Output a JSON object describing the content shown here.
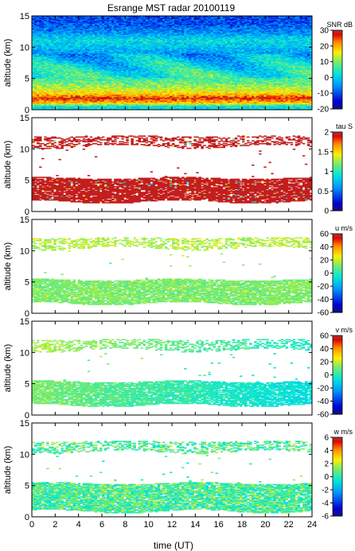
{
  "title": "Esrange MST radar 20100119",
  "xlabel": "time (UT)",
  "chart_data": [
    {
      "type": "heatmap",
      "quantity": "SNR",
      "colorbar_label": "SNR dB",
      "clim": [
        -20,
        30
      ],
      "colorbar_ticks": [
        -20,
        -10,
        0,
        10,
        20,
        30
      ],
      "xlim": [
        0,
        24
      ],
      "xticks": [
        0,
        2,
        4,
        6,
        8,
        10,
        12,
        14,
        16,
        18,
        20,
        22,
        24
      ],
      "ylabel": "altitude (km)",
      "ylim": [
        0,
        15
      ],
      "yticks": [
        0,
        5,
        10,
        15
      ],
      "profile": [
        [
          0.5,
          2
        ],
        [
          1.0,
          18
        ],
        [
          1.8,
          27
        ],
        [
          2.5,
          18
        ],
        [
          3.5,
          12
        ],
        [
          4.5,
          8
        ],
        [
          5.5,
          4
        ],
        [
          7.0,
          1
        ],
        [
          9.0,
          -4
        ],
        [
          11.0,
          2
        ],
        [
          12.5,
          -6
        ],
        [
          14.0,
          -10
        ],
        [
          15.0,
          -10
        ]
      ]
    },
    {
      "type": "heatmap",
      "quantity": "tau",
      "colorbar_label": "tau S",
      "clim": [
        0,
        2
      ],
      "colorbar_ticks": [
        0,
        0.5,
        1,
        1.5,
        2
      ],
      "xlim": [
        0,
        24
      ],
      "xticks": [
        0,
        2,
        4,
        6,
        8,
        10,
        12,
        14,
        16,
        18,
        20,
        22,
        24
      ],
      "ylabel": "altitude (km)",
      "ylim": [
        0,
        15
      ],
      "yticks": [
        0,
        5,
        10,
        15
      ],
      "typical_value": 1.95,
      "layers": [
        {
          "bottom": 1.5,
          "top": 5.3
        },
        {
          "bottom": 10.3,
          "top": 12.0
        }
      ]
    },
    {
      "type": "heatmap",
      "quantity": "u",
      "colorbar_label": "u m/s",
      "clim": [
        -60,
        60
      ],
      "colorbar_ticks": [
        -60,
        -40,
        -20,
        0,
        20,
        40,
        60
      ],
      "xlim": [
        0,
        24
      ],
      "xticks": [
        0,
        2,
        4,
        6,
        8,
        10,
        12,
        14,
        16,
        18,
        20,
        22,
        24
      ],
      "ylabel": "altitude (km)",
      "ylim": [
        0,
        15
      ],
      "yticks": [
        0,
        5,
        10,
        15
      ],
      "typical_value": 12,
      "layers": [
        {
          "bottom": 1.5,
          "top": 5.3
        },
        {
          "bottom": 10.3,
          "top": 12.0
        }
      ]
    },
    {
      "type": "heatmap",
      "quantity": "v",
      "colorbar_label": "v m/s",
      "clim": [
        -60,
        60
      ],
      "colorbar_ticks": [
        -60,
        -40,
        -20,
        0,
        20,
        40,
        60
      ],
      "xlim": [
        0,
        24
      ],
      "xticks": [
        0,
        2,
        4,
        6,
        8,
        10,
        12,
        14,
        16,
        18,
        20,
        22,
        24
      ],
      "ylabel": "altitude (km)",
      "ylim": [
        0,
        15
      ],
      "yticks": [
        0,
        5,
        10,
        15
      ],
      "value_start": 12,
      "value_end": -8,
      "layers": [
        {
          "bottom": 1.5,
          "top": 5.3
        },
        {
          "bottom": 10.3,
          "top": 12.0
        }
      ]
    },
    {
      "type": "heatmap",
      "quantity": "w",
      "colorbar_label": "w m/s",
      "clim": [
        -6,
        6
      ],
      "colorbar_ticks": [
        -6,
        -4,
        -2,
        0,
        2,
        4,
        6
      ],
      "xlim": [
        0,
        24
      ],
      "xticks": [
        0,
        2,
        4,
        6,
        8,
        10,
        12,
        14,
        16,
        18,
        20,
        22,
        24
      ],
      "ylabel": "altitude (km)",
      "ylim": [
        0,
        15
      ],
      "yticks": [
        0,
        5,
        10,
        15
      ],
      "typical_value": 0.5,
      "layers": [
        {
          "bottom": 0.8,
          "top": 5.3
        },
        {
          "bottom": 10.3,
          "top": 12.0
        }
      ]
    }
  ]
}
